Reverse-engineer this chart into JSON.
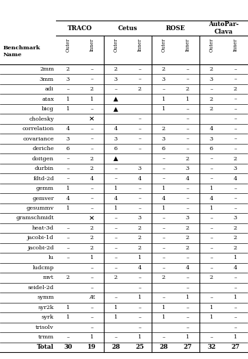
{
  "compilers": [
    "TRACO",
    "Cetus",
    "ROSE",
    "AutoPar-\nClava"
  ],
  "col_labels": [
    "Outer",
    "Inner",
    "Outer",
    "Inner",
    "Outer",
    "Inner",
    "Outer",
    "Inner"
  ],
  "rows": [
    [
      "2mm",
      "2",
      "–",
      "2",
      "–",
      "2",
      "–",
      "2",
      "–"
    ],
    [
      "3mm",
      "3",
      "–",
      "3",
      "–",
      "3",
      "–",
      "3",
      "–"
    ],
    [
      "adi",
      "–",
      "2",
      "–",
      "2",
      "–",
      "2",
      "–",
      "2"
    ],
    [
      "atax",
      "1",
      "1",
      "▲",
      "",
      "1",
      "1",
      "2",
      "–"
    ],
    [
      "bicg",
      "1",
      "–",
      "▲",
      "",
      "1",
      "–",
      "2",
      "–"
    ],
    [
      "cholesky",
      "",
      "×",
      "",
      "–",
      "",
      "–",
      "",
      "–"
    ],
    [
      "correlation",
      "4",
      "–",
      "4",
      "–",
      "2",
      "–",
      "4",
      "–"
    ],
    [
      "covariance",
      "3",
      "–",
      "3",
      "–",
      "3",
      "–",
      "3",
      "–"
    ],
    [
      "deriche",
      "6",
      "–",
      "6",
      "–",
      "6",
      "–",
      "6",
      "–"
    ],
    [
      "doitgen",
      "–",
      "2",
      "▲",
      "",
      "–",
      "2",
      "–",
      "2"
    ],
    [
      "durbin",
      "–",
      "2",
      "–",
      "3",
      "–",
      "3",
      "–",
      "3"
    ],
    [
      "fdtd-2d",
      "–",
      "4",
      "–",
      "4",
      "–",
      "4",
      "–",
      "4"
    ],
    [
      "gemm",
      "1",
      "–",
      "1",
      "–",
      "1",
      "–",
      "1",
      "–"
    ],
    [
      "gemver",
      "4",
      "–",
      "4",
      "–",
      "4",
      "–",
      "4",
      "–"
    ],
    [
      "gesummv",
      "1",
      "–",
      "1",
      "–",
      "1",
      "–",
      "1",
      "–"
    ],
    [
      "gramschmidt",
      "",
      "×",
      "–",
      "3",
      "–",
      "3",
      "–",
      "3"
    ],
    [
      "heat-3d",
      "–",
      "2",
      "–",
      "2",
      "–",
      "2",
      "–",
      "2"
    ],
    [
      "jacobi-1d",
      "–",
      "2",
      "–",
      "2",
      "–",
      "2",
      "–",
      "2"
    ],
    [
      "jacobi-2d",
      "–",
      "2",
      "–",
      "2",
      "–",
      "2",
      "–",
      "2"
    ],
    [
      "lu",
      "–",
      "1",
      "–",
      "1",
      "–",
      "–",
      "–",
      "1"
    ],
    [
      "ludcmp",
      "",
      "–",
      "–",
      "4",
      "–",
      "4",
      "–",
      "4"
    ],
    [
      "mvt",
      "2",
      "–",
      "2",
      "–",
      "2",
      "–",
      "2",
      "–"
    ],
    [
      "seidel-2d",
      "",
      "–",
      "",
      "–",
      "",
      "–",
      "",
      "–"
    ],
    [
      "symm",
      "",
      "Æ",
      "–",
      "1",
      "–",
      "1",
      "–",
      "1"
    ],
    [
      "syr2k",
      "1",
      "–",
      "1",
      "–",
      "1",
      "–",
      "1",
      "–"
    ],
    [
      "syrk",
      "1",
      "–",
      "1",
      "–",
      "1",
      "–",
      "1",
      "–"
    ],
    [
      "trisolv",
      "",
      "–",
      "",
      "–",
      "",
      "–",
      "",
      "–"
    ],
    [
      "trmm",
      "–",
      "1",
      "–",
      "1",
      "–",
      "1",
      "–",
      "1"
    ]
  ],
  "total_row": [
    "Total",
    "30",
    "19",
    "28",
    "25",
    "28",
    "27",
    "32",
    "27"
  ],
  "bg_color": "#ffffff",
  "text_color": "#000000"
}
